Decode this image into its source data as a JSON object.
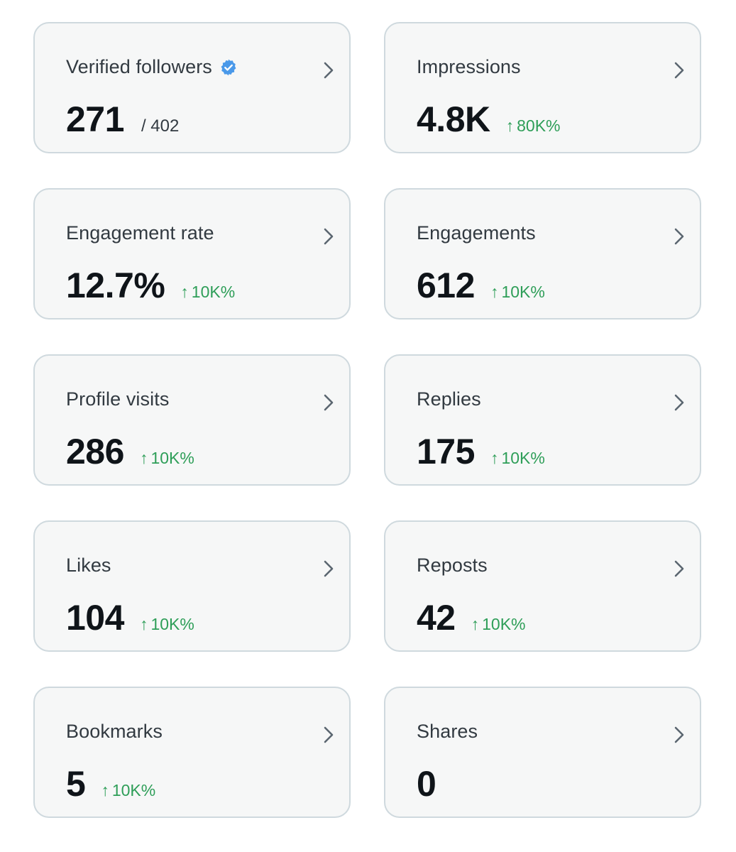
{
  "accent_color": "#4a99e9",
  "change_color": "#2e9e58",
  "cards": [
    {
      "label": "Verified followers",
      "value": "271",
      "sub": "/ 402",
      "change": "",
      "verified": true
    },
    {
      "label": "Impressions",
      "value": "4.8K",
      "sub": "",
      "change": "80K%"
    },
    {
      "label": "Engagement rate",
      "value": "12.7%",
      "sub": "",
      "change": "10K%"
    },
    {
      "label": "Engagements",
      "value": "612",
      "sub": "",
      "change": "10K%"
    },
    {
      "label": "Profile visits",
      "value": "286",
      "sub": "",
      "change": "10K%"
    },
    {
      "label": "Replies",
      "value": "175",
      "sub": "",
      "change": "10K%"
    },
    {
      "label": "Likes",
      "value": "104",
      "sub": "",
      "change": "10K%"
    },
    {
      "label": "Reposts",
      "value": "42",
      "sub": "",
      "change": "10K%"
    },
    {
      "label": "Bookmarks",
      "value": "5",
      "sub": "",
      "change": "10K%"
    },
    {
      "label": "Shares",
      "value": "0",
      "sub": "",
      "change": ""
    }
  ],
  "change_arrow": "↑",
  "icons": {
    "verified": "verified-badge-icon",
    "chevron": "chevron-right-icon"
  }
}
